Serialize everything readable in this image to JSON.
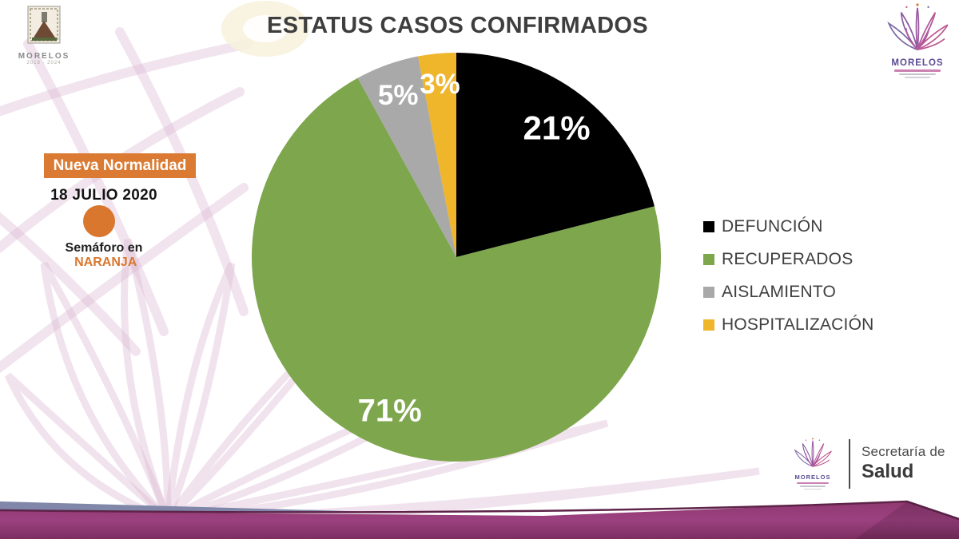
{
  "header": {
    "left_logo": {
      "title": "MORELOS",
      "subtitle": "2018 - 2024"
    },
    "right_logo": {
      "title": "MORELOS"
    }
  },
  "status_panel": {
    "badge_label": "Nueva Normalidad",
    "badge_color": "#DB7B33",
    "date": "18 JULIO 2020",
    "indicator_color": "#D9772E",
    "semaforo_prefix": "Semáforo en",
    "semaforo_value": "NARANJA",
    "semaforo_value_color": "#D9772E"
  },
  "chart_data": {
    "type": "pie",
    "title": "ESTATUS CASOS CONFIRMADOS",
    "categories": [
      "DEFUNCIÓN",
      "RECUPERADOS",
      "AISLAMIENTO",
      "HOSPITALIZACIÓN"
    ],
    "values": [
      21,
      71,
      5,
      3
    ],
    "labels": [
      "21%",
      "71%",
      "5%",
      "3%"
    ],
    "colors": [
      "#000000",
      "#7DA64D",
      "#A9A9A9",
      "#EFB52B"
    ],
    "start_angle_deg": 0,
    "direction": "clockwise",
    "legend_position": "right",
    "label_radius": [
      0.8,
      0.82,
      0.84,
      0.85
    ],
    "label_sizes": [
      42,
      40,
      35,
      35
    ]
  },
  "footer": {
    "logo_title": "MORELOS",
    "secretaria_line1": "Secretaría de",
    "secretaria_line2": "Salud",
    "band_color": "#8E3970"
  }
}
